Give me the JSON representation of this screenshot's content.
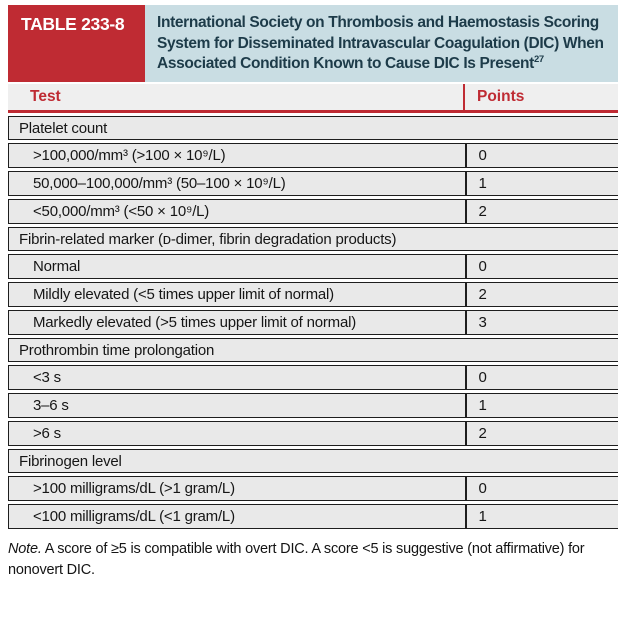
{
  "header": {
    "label": "TABLE 233-8",
    "title_line1": "International Society on Thrombosis and Haemostasis Scoring",
    "title_line2": "System for Disseminated Intravascular Coagulation (DIC) When",
    "title_line3": "Associated Condition Known to Cause DIC Is Present",
    "title_ref": "27"
  },
  "columns": {
    "test": "Test",
    "points": "Points"
  },
  "sections": [
    {
      "header": "Platelet count",
      "rows": [
        {
          "test": ">100,000/mm³ (>100 × 10⁹/L)",
          "points": "0"
        },
        {
          "test": "50,000–100,000/mm³ (50–100 × 10⁹/L)",
          "points": "1"
        },
        {
          "test": "<50,000/mm³ (<50 × 10⁹/L)",
          "points": "2"
        }
      ]
    },
    {
      "header": "Fibrin-related marker (ᴅ-dimer, fibrin degradation products)",
      "rows": [
        {
          "test": "Normal",
          "points": "0"
        },
        {
          "test": "Mildly elevated (<5 times upper limit of normal)",
          "points": "2"
        },
        {
          "test": "Markedly elevated (>5 times upper limit of normal)",
          "points": "3"
        }
      ]
    },
    {
      "header": "Prothrombin time prolongation",
      "rows": [
        {
          "test": "<3 s",
          "points": "0"
        },
        {
          "test": "3–6 s",
          "points": "1"
        },
        {
          "test": ">6 s",
          "points": "2"
        }
      ]
    },
    {
      "header": "Fibrinogen level",
      "rows": [
        {
          "test": ">100 milligrams/dL (>1 gram/L)",
          "points": "0"
        },
        {
          "test": "<100 milligrams/dL (<1 gram/L)",
          "points": "1"
        }
      ]
    }
  ],
  "note": {
    "label": "Note.",
    "text": " A score of ≥5 is compatible with overt DIC. A score <5 is suggestive (not affirmative) for nonovert DIC."
  },
  "colors": {
    "accent_red": "#bf2b33",
    "header_blue": "#c9dde3",
    "title_text": "#1d3b49",
    "row_gray": "#e9e9e9",
    "border_dark": "#1e1e1e"
  }
}
